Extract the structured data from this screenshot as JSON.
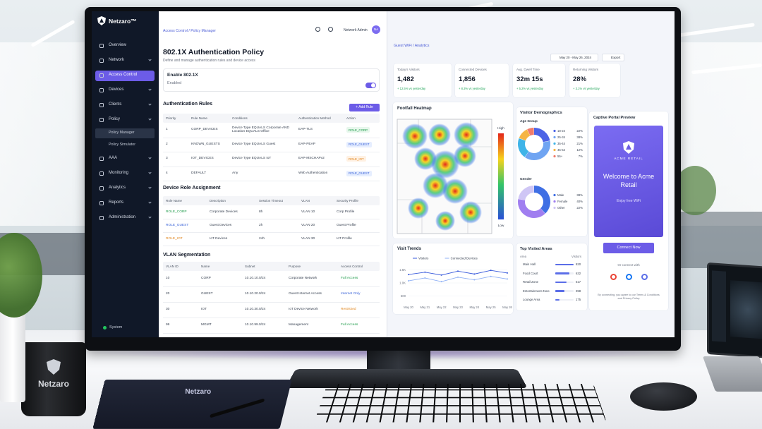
{
  "sidebar": {
    "brand": "Netzaro™",
    "items": [
      {
        "label": "Overview"
      },
      {
        "label": "Network"
      },
      {
        "label": "Access Control",
        "active": true
      },
      {
        "label": "Devices"
      },
      {
        "label": "Clients"
      },
      {
        "label": "Policy",
        "children": [
          "Policy Manager",
          "Policy Simulator"
        ]
      },
      {
        "label": "AAA"
      },
      {
        "label": "Monitoring"
      },
      {
        "label": "Analytics"
      },
      {
        "label": "Reports"
      },
      {
        "label": "Administration"
      }
    ],
    "status": "System"
  },
  "policy": {
    "breadcrumb": "Access Control / Policy Manager",
    "user": "Network Admin",
    "avatar": "NA",
    "title": "802.1X Authentication Policy",
    "subtitle": "Define and manage authentication rules and device access",
    "enable_label": "Enable 802.1X",
    "enable_state": "Enabled",
    "auth_rules": {
      "title": "Authentication Rules",
      "button": "+ Add Rule",
      "columns": [
        "Priority",
        "Rule Name",
        "Conditions",
        "Authentication Method",
        "Action"
      ],
      "rows": [
        [
          "1",
          "CORP_DEVICES",
          "Device Type EQUALS Corporate AND Location EQUALS Office",
          "EAP-TLS",
          "ROLE_CORP"
        ],
        [
          "2",
          "KNOWN_GUESTS",
          "Device Type EQUALS Guest",
          "EAP-PEAP",
          "ROLE_GUEST"
        ],
        [
          "3",
          "IOT_DEVICES",
          "Device Type EQUALS IoT",
          "EAP-MSCHAPv2",
          "ROLE_IOT"
        ],
        [
          "4",
          "DEFAULT",
          "Any",
          "Web Authentication",
          "ROLE_GUEST"
        ]
      ]
    },
    "roles": {
      "title": "Device Role Assignment",
      "columns": [
        "Role Name",
        "Description",
        "Session Timeout",
        "VLAN",
        "Security Profile"
      ],
      "rows": [
        [
          "ROLE_CORP",
          "Corporate Devices",
          "8h",
          "VLAN 10",
          "Corp Profile"
        ],
        [
          "ROLE_GUEST",
          "Guest Devices",
          "2h",
          "VLAN 20",
          "Guest Profile"
        ],
        [
          "ROLE_IOT",
          "IoT Devices",
          "24h",
          "VLAN 30",
          "IoT Profile"
        ]
      ]
    },
    "vlans": {
      "title": "VLAN Segmentation",
      "columns": [
        "VLAN ID",
        "Name",
        "Subnet",
        "Purpose",
        "Access Control"
      ],
      "rows": [
        [
          "10",
          "CORP",
          "10.10.10.0/24",
          "Corporate Network",
          "Full Access"
        ],
        [
          "20",
          "GUEST",
          "10.10.20.0/24",
          "Guest Internet Access",
          "Internet Only"
        ],
        [
          "30",
          "IOT",
          "10.10.30.0/24",
          "IoT Device Network",
          "Restricted"
        ],
        [
          "99",
          "MGMT",
          "10.10.99.0/24",
          "Management",
          "Full Access"
        ]
      ]
    }
  },
  "analytics": {
    "breadcrumb": "Guest WiFi / Analytics",
    "date_range": "May 20 - May 26, 2024",
    "export": "Export",
    "kpis": [
      {
        "label": "Today's Visitors",
        "value": "1,482",
        "change": "+ 12.5% vs yesterday"
      },
      {
        "label": "Connected Devices",
        "value": "1,856",
        "change": "+ 8.3% vs yesterday"
      },
      {
        "label": "Avg. Dwell Time",
        "value": "32m 15s",
        "change": "+ 5.2% vs yesterday"
      },
      {
        "label": "Returning Visitors",
        "value": "28%",
        "change": "+ 3.1% vs yesterday"
      }
    ],
    "heatmap": {
      "title": "Footfall Heatmap",
      "high": "High",
      "low": "Low"
    },
    "demographics": {
      "title": "Visitor Demographics",
      "age": {
        "title": "Age Group",
        "labels": [
          "18-24",
          "25-34",
          "35-44",
          "45-54",
          "55+"
        ],
        "values": [
          22,
          38,
          21,
          12,
          7
        ],
        "value_labels": [
          "22%",
          "38%",
          "21%",
          "12%",
          "7%"
        ],
        "colors": [
          "#4c63e6",
          "#6fa4f2",
          "#3fb4e8",
          "#f5b545",
          "#ef7b6b"
        ]
      },
      "gender": {
        "title": "Gender",
        "labels": [
          "Male",
          "Female",
          "Other"
        ],
        "values": [
          38,
          40,
          22
        ],
        "value_labels": [
          "38%",
          "40%",
          "22%"
        ],
        "colors": [
          "#3f6fe4",
          "#a07ef0",
          "#cfc6f5"
        ]
      }
    },
    "visit_trends": {
      "type": "line",
      "title": "Visit Trends",
      "categories": [
        "May 20",
        "May 21",
        "May 22",
        "May 23",
        "May 24",
        "May 25",
        "May 26"
      ],
      "series": [
        {
          "name": "Visitors",
          "color": "#3a5bdc",
          "values": [
            1320,
            1410,
            1300,
            1450,
            1340,
            1480,
            1380
          ]
        },
        {
          "name": "Connected Devices",
          "color": "#8fb0f5",
          "values": [
            1080,
            1190,
            1050,
            1220,
            1120,
            1250,
            1150
          ]
        }
      ],
      "ylim": [
        300,
        1700
      ],
      "yticks": [
        500,
        {
          "value": 1000,
          "label": "1.0K"
        },
        {
          "value": 1500,
          "label": "1.5K"
        }
      ]
    },
    "top_areas": {
      "title": "Top Visited Areas",
      "columns": [
        "Area",
        "Visitors"
      ],
      "categories": [
        "Main Hall",
        "Food Court",
        "Retail Zone",
        "Entertainment Zone",
        "Lounge Area"
      ],
      "values": [
        820,
        632,
        517,
        398,
        175
      ],
      "color": "#5b6ee8"
    },
    "portal": {
      "title": "Captive Portal Preview",
      "brand": "ACME RETAIL",
      "welcome": "Welcome to Acme Retail",
      "tagline": "Enjoy free WiFi",
      "button": "Connect Now",
      "alt": "Or connect with",
      "terms": "By connecting, you agree to our Terms & Conditions and Privacy Policy"
    }
  },
  "desk": {
    "mug": "Netzaro",
    "notebook": "Netzaro"
  }
}
